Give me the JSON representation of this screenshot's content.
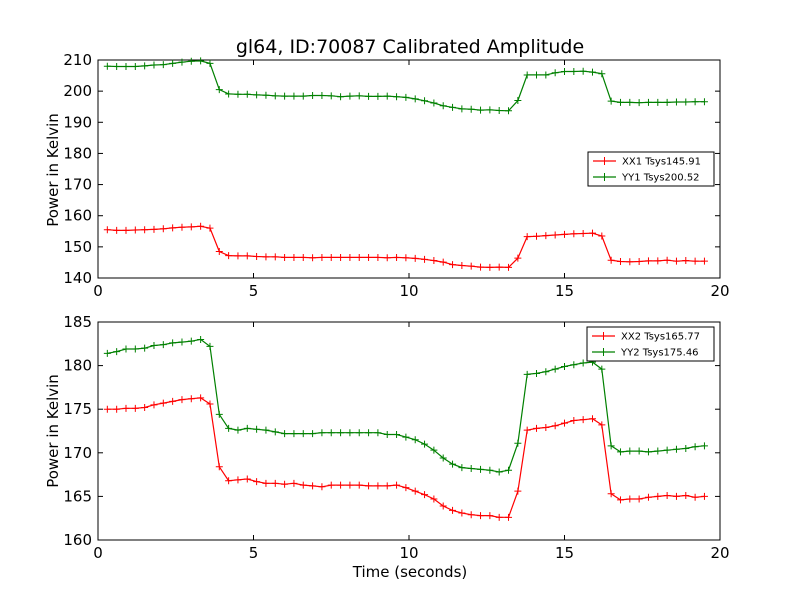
{
  "chart_data": [
    {
      "type": "line",
      "title": "gl64, ID:70087 Calibrated Amplitude",
      "xlabel": "",
      "ylabel": "Power in Kelvin",
      "xlim": [
        0,
        20
      ],
      "ylim": [
        140,
        210
      ],
      "xticks": [
        "0",
        "5",
        "10",
        "15",
        "20"
      ],
      "yticks": [
        "140",
        "150",
        "160",
        "170",
        "180",
        "190",
        "200",
        "210"
      ],
      "grid": false,
      "legend_position": "center-right",
      "x": [
        0.3,
        0.6,
        0.9,
        1.2,
        1.5,
        1.8,
        2.1,
        2.4,
        2.7,
        3.0,
        3.3,
        3.6,
        3.9,
        4.2,
        4.5,
        4.8,
        5.1,
        5.4,
        5.7,
        6.0,
        6.3,
        6.6,
        6.9,
        7.2,
        7.5,
        7.8,
        8.1,
        8.4,
        8.7,
        9.0,
        9.3,
        9.6,
        9.9,
        10.2,
        10.5,
        10.8,
        11.1,
        11.4,
        11.7,
        12.0,
        12.3,
        12.6,
        12.9,
        13.2,
        13.5,
        13.8,
        14.1,
        14.4,
        14.7,
        15.0,
        15.3,
        15.6,
        15.9,
        16.2,
        16.5,
        16.8,
        17.1,
        17.4,
        17.7,
        18.0,
        18.3,
        18.6,
        18.9,
        19.2,
        19.5
      ],
      "series": [
        {
          "name": "XX1 Tsys145.91",
          "color": "#ff0000",
          "values": [
            155.5,
            155.3,
            155.3,
            155.4,
            155.5,
            155.6,
            155.8,
            156.1,
            156.3,
            156.4,
            156.6,
            156.0,
            148.5,
            147.2,
            147.1,
            147.1,
            146.9,
            146.8,
            146.8,
            146.6,
            146.6,
            146.6,
            146.5,
            146.6,
            146.6,
            146.6,
            146.6,
            146.6,
            146.6,
            146.6,
            146.5,
            146.6,
            146.5,
            146.3,
            146.0,
            145.6,
            145.1,
            144.3,
            144.0,
            143.8,
            143.5,
            143.4,
            143.5,
            143.4,
            146.4,
            153.3,
            153.4,
            153.6,
            153.8,
            154.0,
            154.2,
            154.3,
            154.4,
            153.5,
            145.7,
            145.3,
            145.2,
            145.3,
            145.5,
            145.5,
            145.7,
            145.4,
            145.6,
            145.4,
            145.4
          ]
        },
        {
          "name": "YY1 Tsys200.52",
          "color": "#008000",
          "values": [
            208.0,
            207.9,
            207.9,
            207.9,
            208.1,
            208.4,
            208.5,
            208.9,
            209.3,
            209.6,
            209.7,
            208.9,
            200.5,
            199.1,
            199.0,
            199.0,
            198.8,
            198.7,
            198.5,
            198.4,
            198.4,
            198.4,
            198.6,
            198.6,
            198.5,
            198.2,
            198.4,
            198.5,
            198.3,
            198.3,
            198.4,
            198.2,
            198.0,
            197.5,
            196.9,
            196.2,
            195.3,
            194.8,
            194.3,
            194.2,
            193.9,
            194.0,
            193.8,
            193.7,
            197.0,
            205.2,
            205.2,
            205.2,
            205.9,
            206.3,
            206.3,
            206.4,
            206.1,
            205.6,
            196.8,
            196.4,
            196.4,
            196.3,
            196.4,
            196.4,
            196.4,
            196.5,
            196.5,
            196.6,
            196.6
          ]
        }
      ]
    },
    {
      "type": "line",
      "title": "",
      "xlabel": "Time (seconds)",
      "ylabel": "Power in Kelvin",
      "xlim": [
        0,
        20
      ],
      "ylim": [
        160,
        185
      ],
      "xticks": [
        "0",
        "5",
        "10",
        "15",
        "20"
      ],
      "yticks": [
        "160",
        "165",
        "170",
        "175",
        "180",
        "185"
      ],
      "grid": false,
      "legend_position": "top-right",
      "x": [
        0.3,
        0.6,
        0.9,
        1.2,
        1.5,
        1.8,
        2.1,
        2.4,
        2.7,
        3.0,
        3.3,
        3.6,
        3.9,
        4.2,
        4.5,
        4.8,
        5.1,
        5.4,
        5.7,
        6.0,
        6.3,
        6.6,
        6.9,
        7.2,
        7.5,
        7.8,
        8.1,
        8.4,
        8.7,
        9.0,
        9.3,
        9.6,
        9.9,
        10.2,
        10.5,
        10.8,
        11.1,
        11.4,
        11.7,
        12.0,
        12.3,
        12.6,
        12.9,
        13.2,
        13.5,
        13.8,
        14.1,
        14.4,
        14.7,
        15.0,
        15.3,
        15.6,
        15.9,
        16.2,
        16.5,
        16.8,
        17.1,
        17.4,
        17.7,
        18.0,
        18.3,
        18.6,
        18.9,
        19.2,
        19.5
      ],
      "series": [
        {
          "name": "XX2 Tsys165.77",
          "color": "#ff0000",
          "values": [
            175.0,
            175.0,
            175.1,
            175.1,
            175.2,
            175.5,
            175.7,
            175.9,
            176.1,
            176.2,
            176.3,
            175.6,
            168.4,
            166.8,
            166.9,
            167.0,
            166.7,
            166.5,
            166.5,
            166.4,
            166.5,
            166.3,
            166.2,
            166.1,
            166.3,
            166.3,
            166.3,
            166.3,
            166.2,
            166.2,
            166.2,
            166.3,
            166.0,
            165.6,
            165.2,
            164.7,
            163.9,
            163.4,
            163.1,
            162.9,
            162.8,
            162.8,
            162.6,
            162.6,
            165.6,
            172.6,
            172.8,
            172.9,
            173.1,
            173.4,
            173.7,
            173.8,
            173.9,
            173.2,
            165.3,
            164.6,
            164.7,
            164.7,
            164.9,
            165.0,
            165.1,
            165.0,
            165.1,
            164.9,
            165.0
          ]
        },
        {
          "name": "YY2 Tsys175.46",
          "color": "#008000",
          "values": [
            181.4,
            181.6,
            181.9,
            181.9,
            182.0,
            182.3,
            182.4,
            182.6,
            182.7,
            182.8,
            183.0,
            182.2,
            174.4,
            172.8,
            172.6,
            172.8,
            172.7,
            172.6,
            172.4,
            172.2,
            172.2,
            172.2,
            172.2,
            172.3,
            172.3,
            172.3,
            172.3,
            172.3,
            172.3,
            172.3,
            172.1,
            172.1,
            171.8,
            171.5,
            171.0,
            170.3,
            169.4,
            168.7,
            168.3,
            168.2,
            168.1,
            168.0,
            167.8,
            168.0,
            171.1,
            179.0,
            179.1,
            179.3,
            179.6,
            179.9,
            180.1,
            180.3,
            180.4,
            179.6,
            170.8,
            170.1,
            170.2,
            170.2,
            170.1,
            170.2,
            170.3,
            170.4,
            170.5,
            170.7,
            170.8
          ]
        }
      ]
    }
  ]
}
